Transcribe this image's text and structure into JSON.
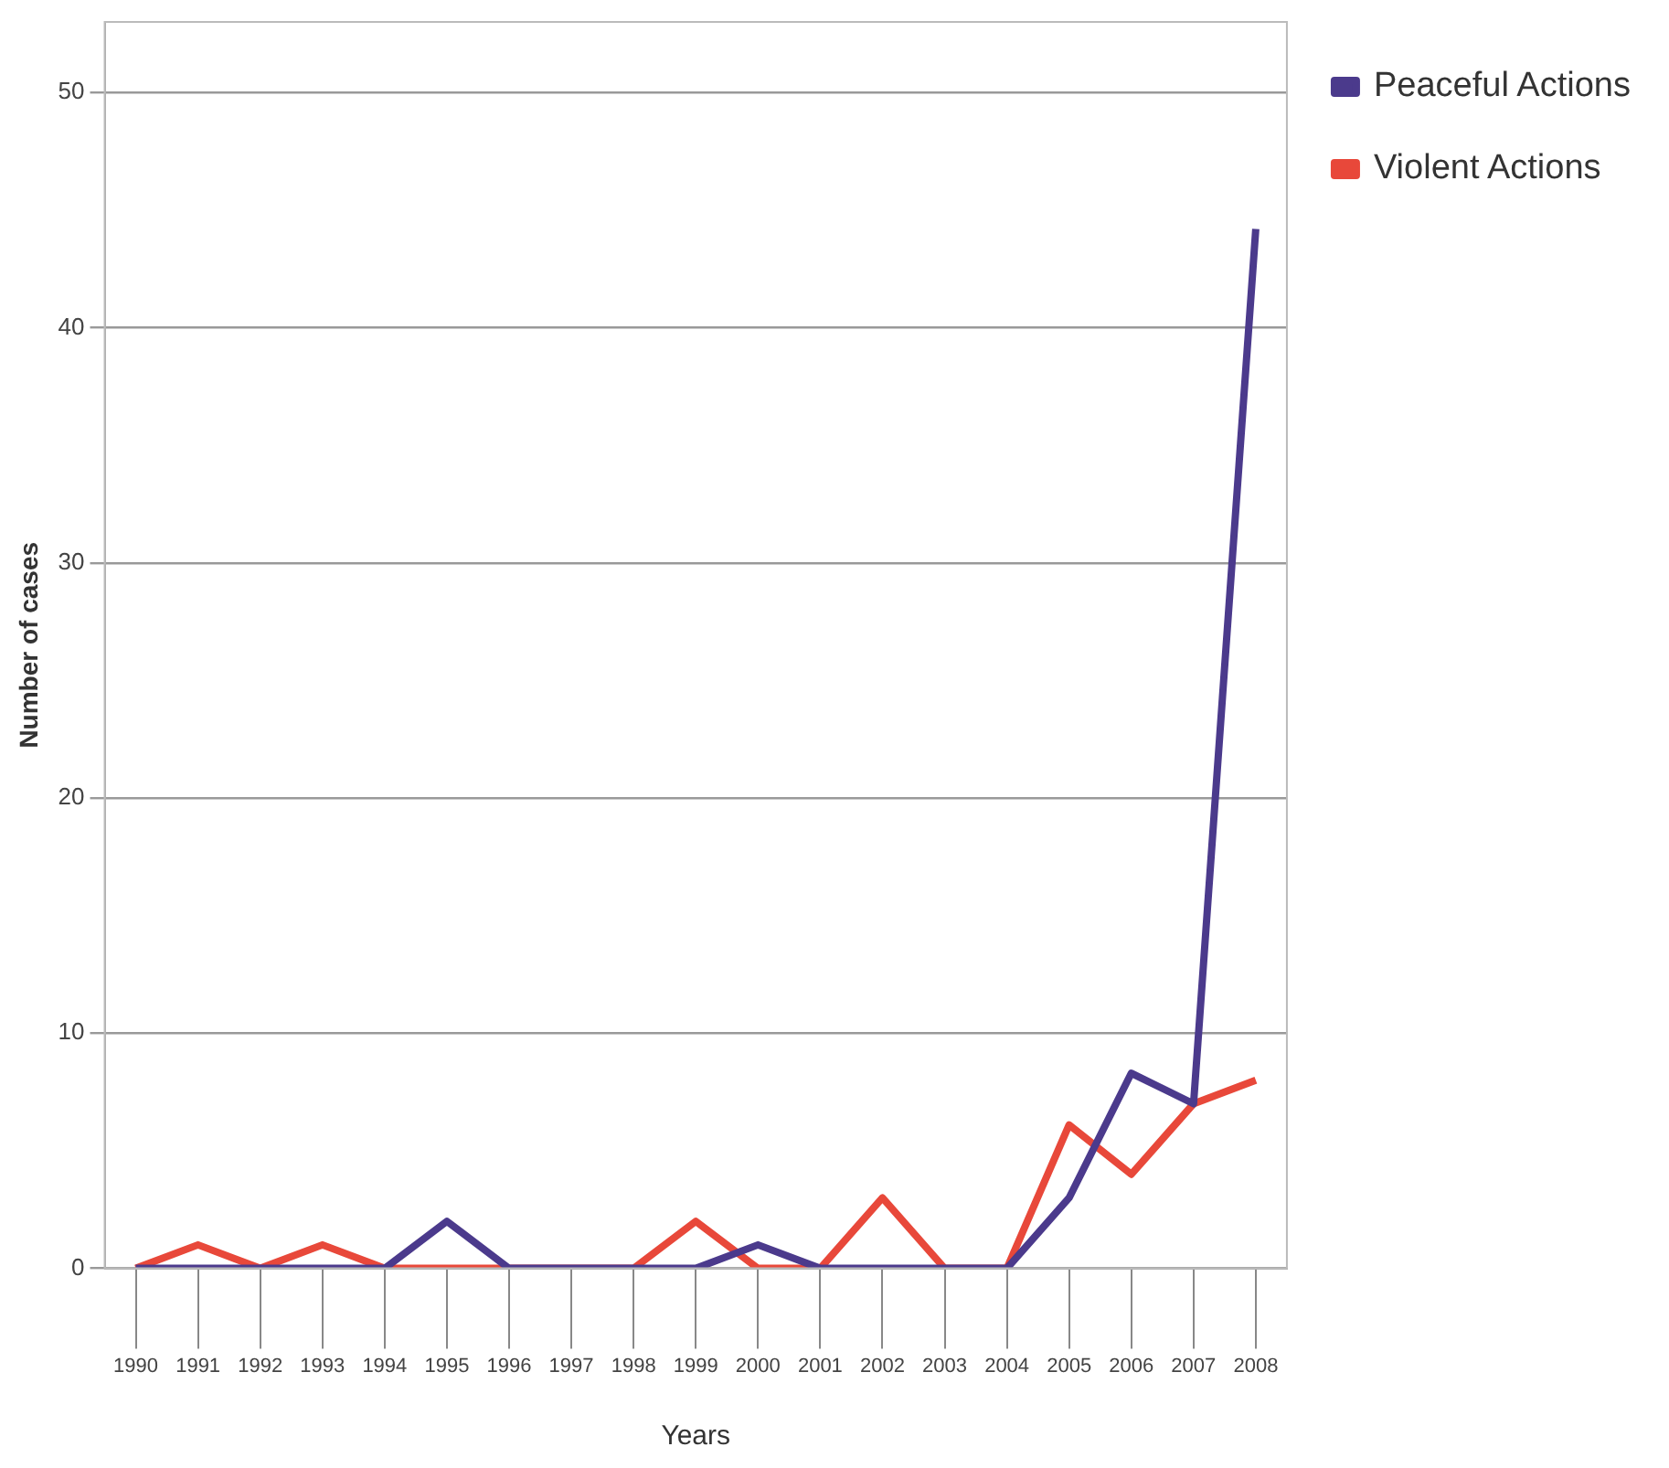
{
  "chart_data": {
    "type": "line",
    "xlabel": "Years",
    "ylabel": "Number of cases",
    "categories": [
      "1990",
      "1991",
      "1992",
      "1993",
      "1994",
      "1995",
      "1996",
      "1997",
      "1998",
      "1999",
      "2000",
      "2001",
      "2002",
      "2003",
      "2004",
      "2005",
      "2006",
      "2007",
      "2008"
    ],
    "series": [
      {
        "name": "Peaceful Actions",
        "color": "#4b3a8c",
        "values": [
          0,
          0,
          0,
          0,
          0,
          2,
          0,
          0,
          0,
          0,
          1,
          0,
          0,
          0,
          0,
          3,
          8.3,
          7,
          44.2
        ]
      },
      {
        "name": "Violent Actions",
        "color": "#e8483a",
        "values": [
          0,
          1,
          0,
          1,
          0,
          0,
          0,
          0,
          0,
          2,
          0,
          0,
          3,
          0,
          0,
          6.1,
          4,
          7,
          8
        ]
      }
    ],
    "ylim": [
      0,
      53
    ],
    "yticks": [
      0,
      10,
      20,
      30,
      40,
      50
    ],
    "grid": "y",
    "legend": "right",
    "marker": "none",
    "line_style": "solid"
  }
}
